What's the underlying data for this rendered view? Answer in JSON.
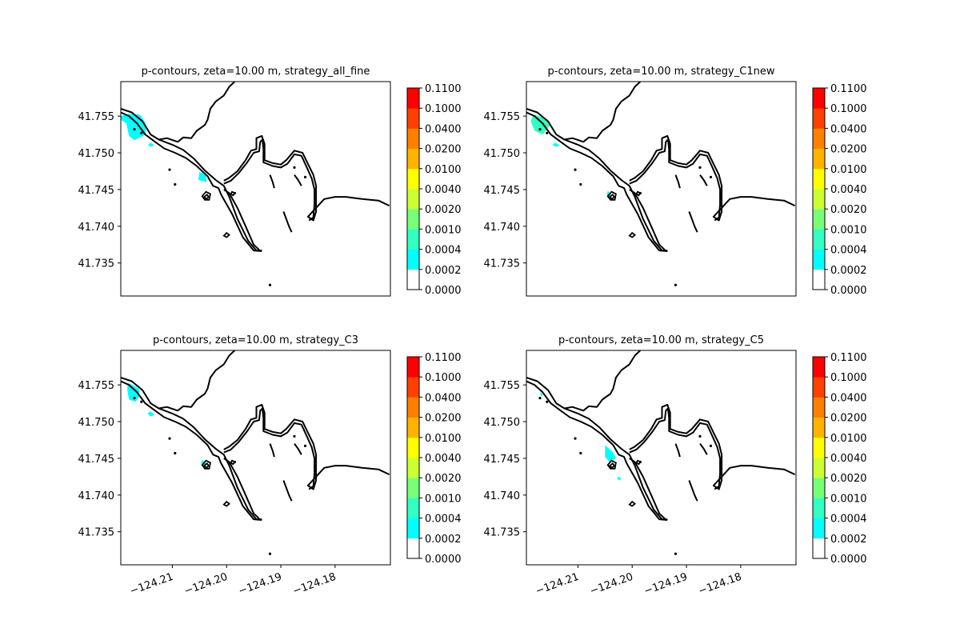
{
  "chart_data": {
    "type": "contour",
    "shared": {
      "yticks": [
        41.735,
        41.74,
        41.745,
        41.75,
        41.755
      ],
      "ytick_labels": [
        "41.735",
        "41.740",
        "41.745",
        "41.750",
        "41.755"
      ],
      "xticks": [
        -124.21,
        -124.2,
        -124.19,
        -124.18
      ],
      "xtick_labels": [
        "−124.21",
        "−124.20",
        "−124.19",
        "−124.18"
      ],
      "xlim": [
        -124.2195,
        -124.1698
      ],
      "ylim": [
        41.7305,
        41.7597
      ],
      "colorbar": {
        "levels": [
          "0.0000",
          "0.0002",
          "0.0004",
          "0.0010",
          "0.0020",
          "0.0040",
          "0.0100",
          "0.0200",
          "0.0400",
          "0.1000",
          "0.1100"
        ],
        "colors": [
          "#ffffff",
          "#00ffff",
          "#33ffc2",
          "#77ff77",
          "#ccff33",
          "#ffff00",
          "#ffb300",
          "#ff8000",
          "#ff4000",
          "#ff0000"
        ]
      }
    },
    "panels": [
      {
        "title": "p-contours, zeta=10.00 m, strategy_all_fine",
        "show_xticks": false,
        "patches": [
          {
            "level": "0.0002",
            "points": [
              [
                -124.2195,
                41.755
              ],
              [
                -124.218,
                41.7553
              ],
              [
                -124.216,
                41.7552
              ],
              [
                -124.2149,
                41.754
              ],
              [
                -124.2149,
                41.7525
              ],
              [
                -124.217,
                41.7517
              ],
              [
                -124.218,
                41.7523
              ],
              [
                -124.2185,
                41.754
              ],
              [
                -124.2195,
                41.7545
              ]
            ]
          },
          {
            "level": "0.0002",
            "points": [
              [
                -124.214,
                41.7514
              ],
              [
                -124.2134,
                41.751
              ],
              [
                -124.214,
                41.7508
              ],
              [
                -124.2145,
                41.7511
              ]
            ]
          },
          {
            "level": "0.0002",
            "points": [
              [
                -124.205,
                41.7474
              ],
              [
                -124.2038,
                41.747
              ],
              [
                -124.2037,
                41.746
              ],
              [
                -124.2052,
                41.7463
              ]
            ]
          }
        ]
      },
      {
        "title": "p-contours, zeta=10.00 m, strategy_C1new",
        "show_xticks": false,
        "patches": [
          {
            "level": "0.0004",
            "points": [
              [
                -124.2182,
                41.7552
              ],
              [
                -124.216,
                41.7547
              ],
              [
                -124.2152,
                41.7537
              ],
              [
                -124.2165,
                41.7525
              ],
              [
                -124.218,
                41.753
              ],
              [
                -124.2187,
                41.7543
              ]
            ]
          },
          {
            "level": "0.0002",
            "points": [
              [
                -124.2142,
                41.7514
              ],
              [
                -124.2134,
                41.751
              ],
              [
                -124.214,
                41.7508
              ],
              [
                -124.2147,
                41.7511
              ]
            ]
          },
          {
            "level": "0.0002",
            "points": [
              [
                -124.2045,
                41.7448
              ],
              [
                -124.2038,
                41.7443
              ],
              [
                -124.2041,
                41.744
              ],
              [
                -124.2047,
                41.7443
              ]
            ]
          }
        ]
      },
      {
        "title": "p-contours, zeta=10.00 m, strategy_C3",
        "show_xticks": true,
        "patches": [
          {
            "level": "0.0002",
            "points": [
              [
                -124.2182,
                41.7553
              ],
              [
                -124.2162,
                41.7545
              ],
              [
                -124.216,
                41.7535
              ],
              [
                -124.2168,
                41.7527
              ],
              [
                -124.218,
                41.753
              ],
              [
                -124.2183,
                41.7543
              ]
            ]
          },
          {
            "level": "0.0002",
            "points": [
              [
                -124.214,
                41.7514
              ],
              [
                -124.2133,
                41.7509
              ],
              [
                -124.214,
                41.7507
              ],
              [
                -124.2146,
                41.7511
              ]
            ]
          },
          {
            "level": "0.0002",
            "points": [
              [
                -124.2045,
                41.7448
              ],
              [
                -124.2038,
                41.7443
              ],
              [
                -124.2041,
                41.744
              ],
              [
                -124.2047,
                41.7443
              ]
            ]
          }
        ]
      },
      {
        "title": "p-contours, zeta=10.00 m, strategy_C5",
        "show_xticks": true,
        "patches": [
          {
            "level": "0.0002",
            "points": [
              [
                -124.205,
                41.7468
              ],
              [
                -124.2035,
                41.7458
              ],
              [
                -124.203,
                41.745
              ],
              [
                -124.2042,
                41.7445
              ],
              [
                -124.205,
                41.7452
              ]
            ]
          },
          {
            "level": "0.0002",
            "points": [
              [
                -124.217,
                41.754
              ],
              [
                -124.2164,
                41.7537
              ],
              [
                -124.2168,
                41.7534
              ]
            ]
          },
          {
            "level": "0.0002",
            "points": [
              [
                -124.2025,
                41.7425
              ],
              [
                -124.202,
                41.7422
              ],
              [
                -124.2024,
                41.742
              ],
              [
                -124.2028,
                41.7423
              ]
            ]
          }
        ]
      }
    ],
    "coastline": [
      [
        [
          -124.2195,
          41.7555
        ],
        [
          -124.218,
          41.755
        ],
        [
          -124.2165,
          41.754
        ],
        [
          -124.215,
          41.7525
        ],
        [
          -124.213,
          41.7514
        ],
        [
          -124.2115,
          41.7506
        ],
        [
          -124.2095,
          41.75
        ],
        [
          -124.2075,
          41.7493
        ],
        [
          -124.2055,
          41.7482
        ],
        [
          -124.2035,
          41.7468
        ],
        [
          -124.2025,
          41.7455
        ],
        [
          -124.2015,
          41.7452
        ],
        [
          -124.201,
          41.7443
        ],
        [
          -124.199,
          41.7417
        ],
        [
          -124.197,
          41.7385
        ],
        [
          -124.195,
          41.7367
        ],
        [
          -124.1935,
          41.7366
        ]
      ],
      [
        [
          -124.2195,
          41.756
        ],
        [
          -124.2175,
          41.7555
        ],
        [
          -124.2155,
          41.7543
        ],
        [
          -124.214,
          41.7525
        ],
        [
          -124.2125,
          41.7518
        ],
        [
          -124.21,
          41.7511
        ],
        [
          -124.208,
          41.7504
        ],
        [
          -124.206,
          41.7492
        ],
        [
          -124.204,
          41.7476
        ],
        [
          -124.202,
          41.7463
        ],
        [
          -124.2005,
          41.7455
        ],
        [
          -124.1995,
          41.744
        ],
        [
          -124.198,
          41.741
        ],
        [
          -124.196,
          41.738
        ],
        [
          -124.1945,
          41.7367
        ],
        [
          -124.1935,
          41.7367
        ]
      ],
      [
        [
          -124.2125,
          41.7518
        ],
        [
          -124.211,
          41.752
        ],
        [
          -124.209,
          41.7515
        ],
        [
          -124.208,
          41.7521
        ],
        [
          -124.2065,
          41.752
        ],
        [
          -124.2055,
          41.753
        ],
        [
          -124.204,
          41.7538
        ],
        [
          -124.2035,
          41.7545
        ],
        [
          -124.203,
          41.756
        ],
        [
          -124.202,
          41.757
        ],
        [
          -124.2005,
          41.7578
        ],
        [
          -124.1995,
          41.759
        ],
        [
          -124.1985,
          41.7597
        ]
      ],
      [
        [
          -124.2005,
          41.7462
        ],
        [
          -124.1995,
          41.7466
        ],
        [
          -124.198,
          41.7475
        ],
        [
          -124.1965,
          41.749
        ],
        [
          -124.1955,
          41.7503
        ],
        [
          -124.1945,
          41.7505
        ],
        [
          -124.1945,
          41.752
        ],
        [
          -124.1935,
          41.7523
        ],
        [
          -124.193,
          41.7512
        ],
        [
          -124.193,
          41.749
        ],
        [
          -124.1915,
          41.7486
        ],
        [
          -124.19,
          41.7484
        ],
        [
          -124.189,
          41.749
        ],
        [
          -124.1875,
          41.7503
        ],
        [
          -124.186,
          41.75
        ],
        [
          -124.185,
          41.7485
        ],
        [
          -124.184,
          41.747
        ],
        [
          -124.1835,
          41.7455
        ],
        [
          -124.1835,
          41.744
        ],
        [
          -124.1835,
          41.742
        ],
        [
          -124.184,
          41.7408
        ],
        [
          -124.185,
          41.7413
        ],
        [
          -124.182,
          41.7437
        ],
        [
          -124.18,
          41.744
        ],
        [
          -124.178,
          41.744
        ],
        [
          -124.175,
          41.7437
        ],
        [
          -124.172,
          41.7435
        ],
        [
          -124.17,
          41.7428
        ]
      ],
      [
        [
          -124.2005,
          41.7458
        ],
        [
          -124.1992,
          41.7462
        ],
        [
          -124.1978,
          41.7472
        ],
        [
          -124.1962,
          41.7487
        ],
        [
          -124.195,
          41.75
        ],
        [
          -124.194,
          41.7502
        ],
        [
          -124.1938,
          41.7515
        ],
        [
          -124.1934,
          41.7518
        ],
        [
          -124.1932,
          41.7505
        ],
        [
          -124.1932,
          41.7487
        ],
        [
          -124.1915,
          41.7482
        ],
        [
          -124.19,
          41.748
        ],
        [
          -124.1888,
          41.7485
        ],
        [
          -124.1875,
          41.7498
        ],
        [
          -124.1862,
          41.7496
        ],
        [
          -124.1852,
          41.748
        ],
        [
          -124.1843,
          41.7465
        ],
        [
          -124.1838,
          41.745
        ],
        [
          -124.1838,
          41.743
        ],
        [
          -124.184,
          41.7412
        ],
        [
          -124.1848,
          41.7408
        ]
      ],
      [
        [
          -124.2005,
          41.745
        ],
        [
          -124.1995,
          41.7445
        ],
        [
          -124.198,
          41.7425
        ],
        [
          -124.1965,
          41.74
        ],
        [
          -124.195,
          41.7375
        ],
        [
          -124.194,
          41.7368
        ]
      ],
      [
        [
          -124.192,
          41.747
        ],
        [
          -124.1915,
          41.746
        ],
        [
          -124.1912,
          41.7452
        ]
      ],
      [
        [
          -124.1895,
          41.742
        ],
        [
          -124.189,
          41.741
        ],
        [
          -124.1885,
          41.74
        ],
        [
          -124.188,
          41.7392
        ]
      ],
      [
        [
          -124.1875,
          41.747
        ],
        [
          -124.1868,
          41.7463
        ],
        [
          -124.1862,
          41.7455
        ]
      ]
    ],
    "islands": [
      [
        [
          -124.2045,
          41.7441
        ],
        [
          -124.2038,
          41.7447
        ],
        [
          -124.203,
          41.7444
        ],
        [
          -124.2032,
          41.7436
        ],
        [
          -124.204,
          41.7436
        ]
      ],
      [
        [
          -124.2041,
          41.744
        ],
        [
          -124.2036,
          41.7443
        ],
        [
          -124.2033,
          41.744
        ],
        [
          -124.2037,
          41.7437
        ]
      ],
      [
        [
          -124.2005,
          41.7387
        ],
        [
          -124.2,
          41.7391
        ],
        [
          -124.1995,
          41.7388
        ],
        [
          -124.2,
          41.7385
        ]
      ],
      [
        [
          -124.199,
          41.7447
        ],
        [
          -124.1985,
          41.7445
        ],
        [
          -124.1988,
          41.7442
        ],
        [
          -124.1992,
          41.7444
        ]
      ]
    ],
    "dots": [
      [
        -124.217,
        41.7532
      ],
      [
        -124.2157,
        41.7527
      ],
      [
        -124.2105,
        41.7477
      ],
      [
        -124.2095,
        41.7457
      ],
      [
        -124.1985,
        41.7445
      ],
      [
        -124.192,
        41.732
      ],
      [
        -124.1875,
        41.748
      ],
      [
        -124.1855,
        41.7467
      ]
    ]
  }
}
